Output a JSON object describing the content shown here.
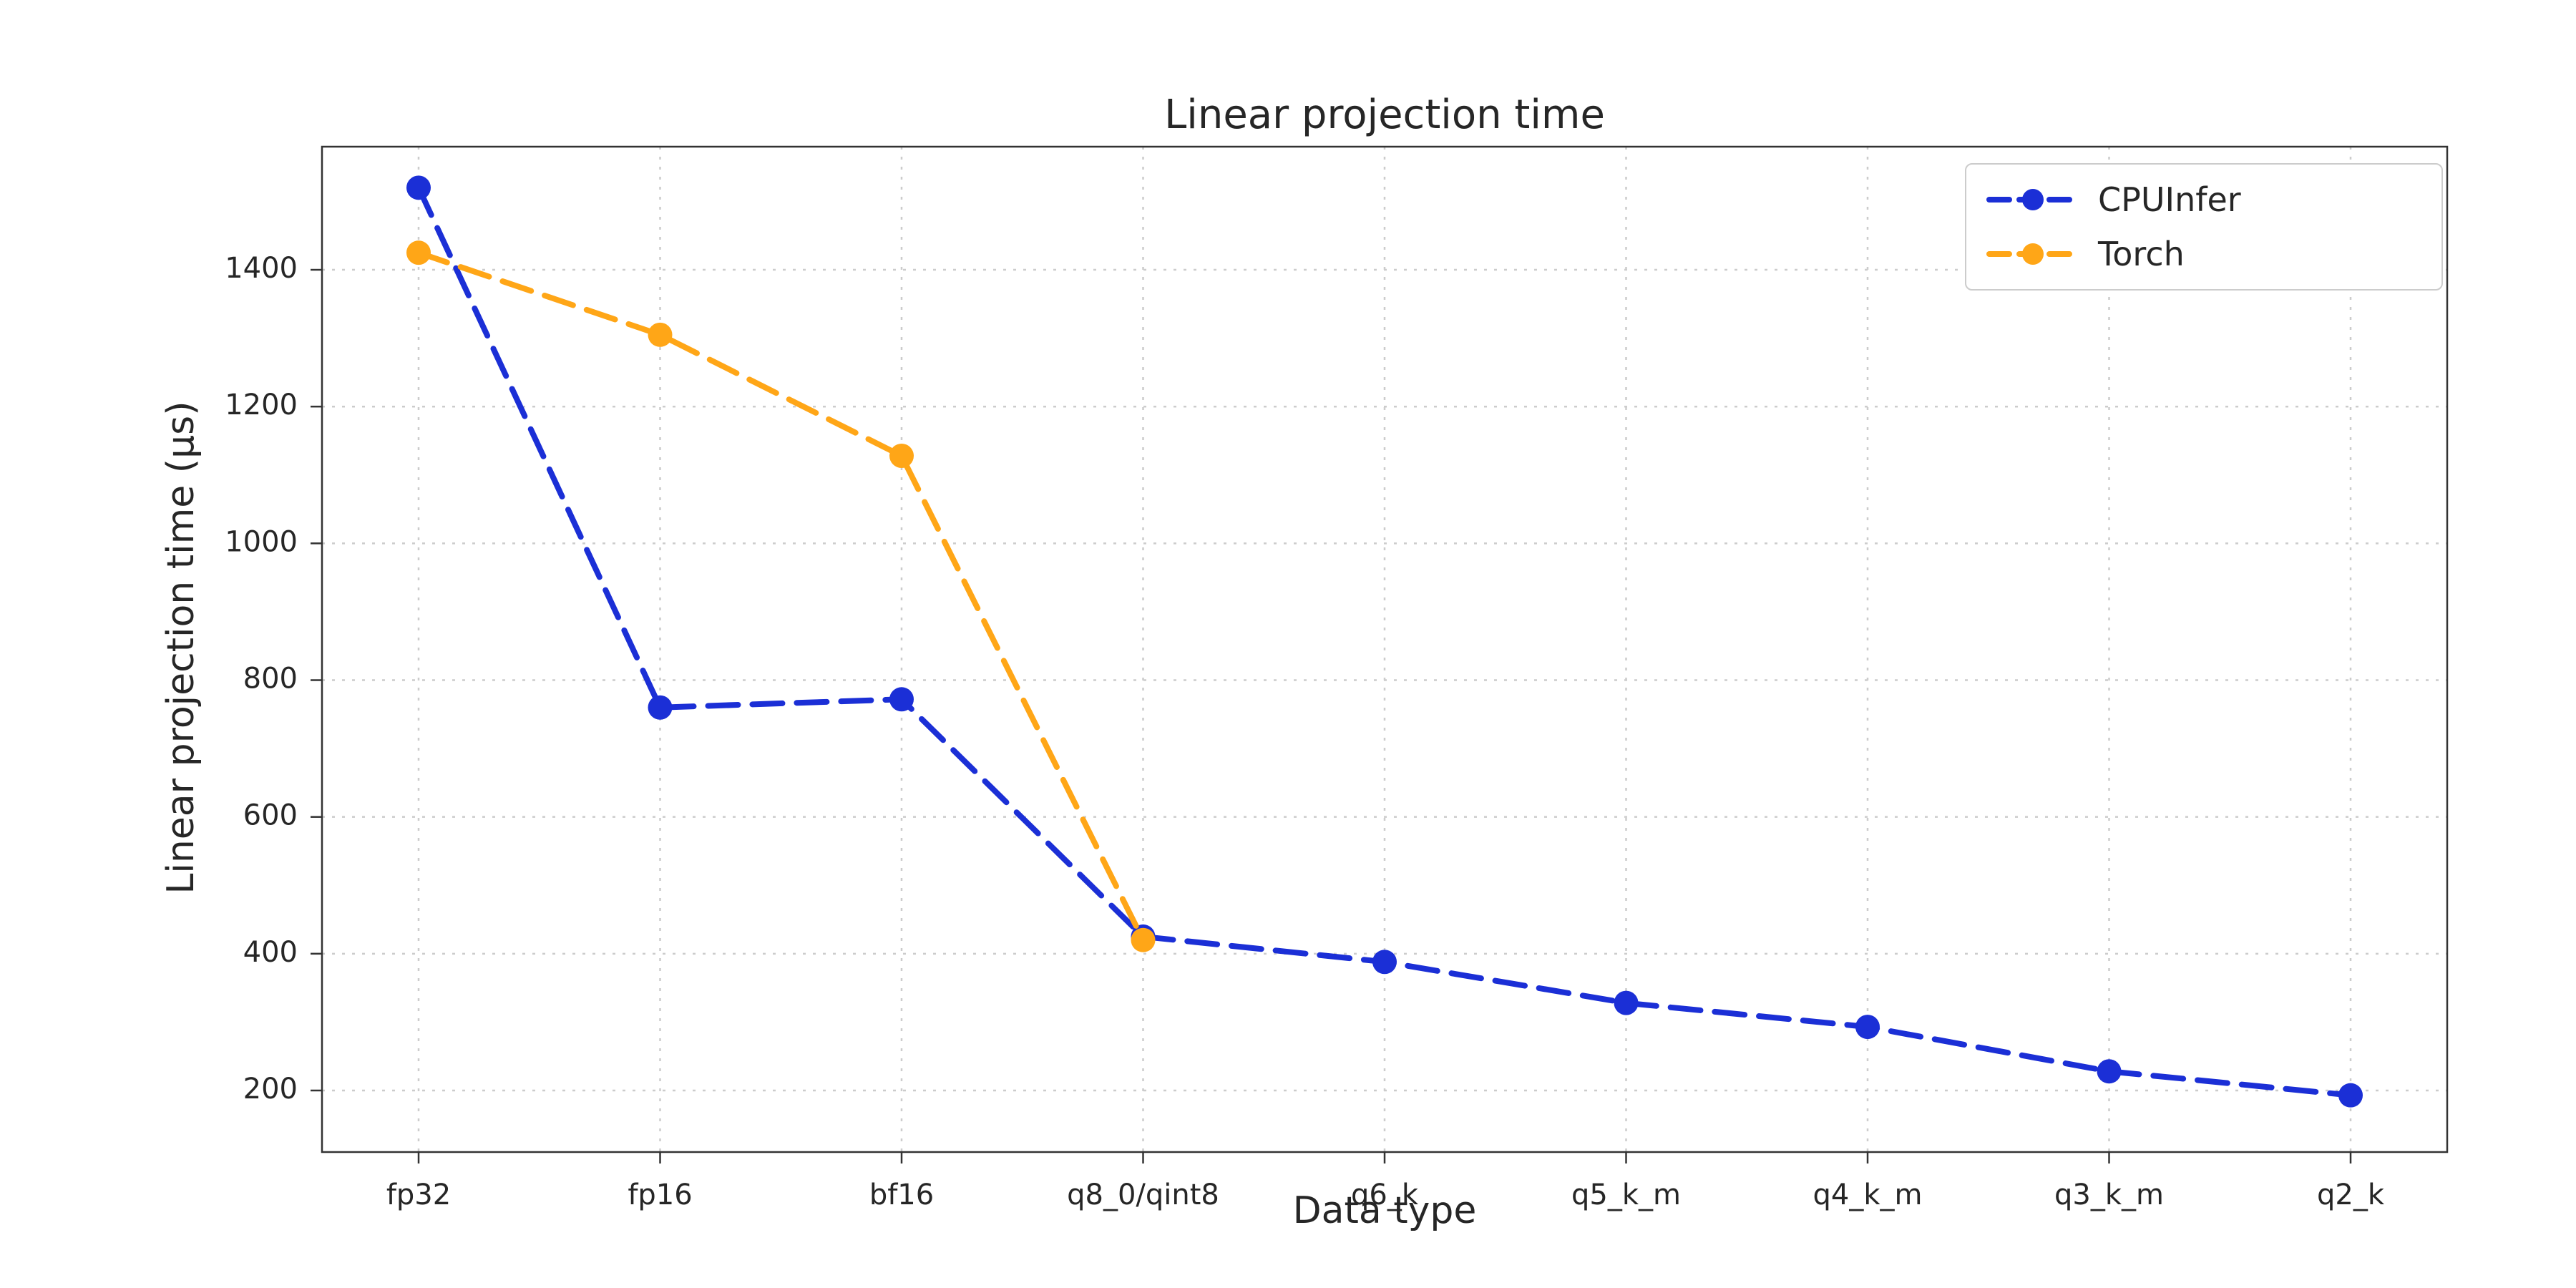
{
  "chart_data": {
    "type": "line",
    "title": "Linear projection time",
    "xlabel": "Data type",
    "ylabel": "Linear projection time (µs)",
    "categories": [
      "fp32",
      "fp16",
      "bf16",
      "q8_0/qint8",
      "q6_k",
      "q5_k_m",
      "q4_k_m",
      "q3_k_m",
      "q2_k"
    ],
    "series": [
      {
        "name": "CPUInfer",
        "color": "#1b2fd6",
        "values": [
          1520,
          760,
          772,
          425,
          388,
          328,
          293,
          228,
          193
        ]
      },
      {
        "name": "Torch",
        "color": "#ffa617",
        "values": [
          1425,
          1305,
          1128,
          420,
          null,
          null,
          null,
          null,
          null
        ]
      }
    ],
    "yticks": [
      200,
      400,
      600,
      800,
      1000,
      1200,
      1400
    ],
    "ylim": [
      110,
      1580
    ],
    "grid": true,
    "line_style": "dashed",
    "marker": "circle",
    "legend_position": "upper right",
    "grid_color": "#cccccc",
    "background_color": "#ffffff"
  }
}
